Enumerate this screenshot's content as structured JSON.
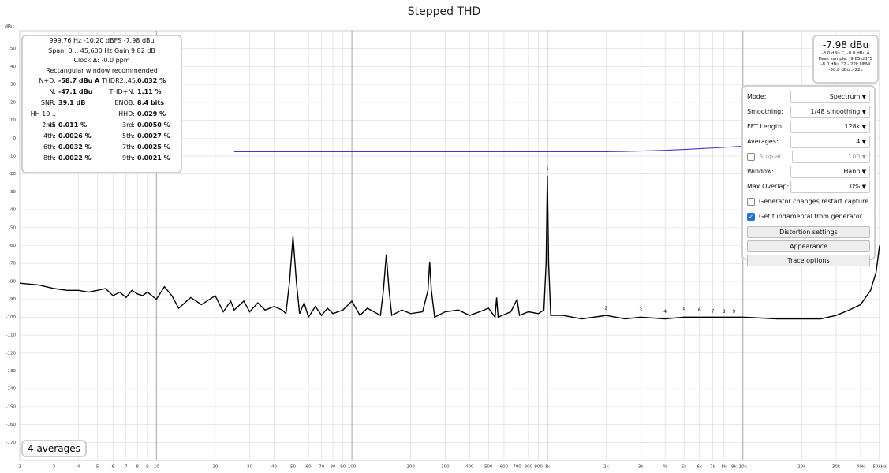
{
  "chart_data": {
    "type": "line",
    "title": "Stepped THD",
    "y_label": "dBu",
    "log_x": true,
    "grid": true,
    "xlim": [
      2,
      50000
    ],
    "ylim": [
      -180,
      60
    ],
    "xticks": [
      2,
      3,
      4,
      5,
      6,
      7,
      8,
      9,
      10,
      20,
      30,
      40,
      50,
      60,
      70,
      80,
      90,
      100,
      200,
      300,
      400,
      500,
      600,
      700,
      800,
      900,
      {
        "value": 1000,
        "label": "1k"
      },
      {
        "value": 2000,
        "label": "2k"
      },
      {
        "value": 3000,
        "label": "3k"
      },
      {
        "value": 4000,
        "label": "4k"
      },
      {
        "value": 5000,
        "label": "5k"
      },
      {
        "value": 6000,
        "label": "6k"
      },
      {
        "value": 7000,
        "label": "7k"
      },
      {
        "value": 8000,
        "label": "8k"
      },
      {
        "value": 9000,
        "label": "9k"
      },
      {
        "value": 10000,
        "label": "10k"
      },
      {
        "value": 20000,
        "label": "20k"
      },
      {
        "value": 30000,
        "label": "30k"
      },
      {
        "value": 40000,
        "label": "40k"
      },
      {
        "value": 50000,
        "label": "50kHz"
      }
    ],
    "yticks": [
      50,
      40,
      30,
      20,
      10,
      0,
      -10,
      -20,
      -30,
      -40,
      -50,
      -60,
      -70,
      -80,
      -90,
      -100,
      -110,
      -120,
      -130,
      -140,
      -150,
      -160,
      -170
    ],
    "x": [
      2,
      2.5,
      3,
      3.5,
      4,
      4.5,
      5,
      5.5,
      6,
      6.5,
      7,
      7.5,
      8,
      8.5,
      9,
      10,
      11,
      12,
      13,
      15,
      17,
      20,
      22,
      24,
      25,
      28,
      30,
      33,
      36,
      40,
      44,
      46,
      48,
      50,
      52,
      54,
      57,
      60,
      65,
      70,
      75,
      80,
      90,
      100,
      110,
      120,
      140,
      145,
      150,
      155,
      160,
      180,
      200,
      230,
      245,
      250,
      255,
      265,
      300,
      350,
      400,
      450,
      500,
      540,
      550,
      560,
      650,
      700,
      720,
      800,
      900,
      960,
      985,
      1000,
      1015,
      1040,
      1200,
      1500,
      2000,
      2500,
      3000,
      4000,
      5000,
      7000,
      10000,
      15000,
      20000,
      25000,
      30000,
      35000,
      40000,
      45000,
      48000,
      50000
    ],
    "series": [
      {
        "name": "Spectrum",
        "color": "#000000",
        "values": [
          -81,
          -82,
          -84,
          -85,
          -85,
          -86,
          -85,
          -84,
          -88,
          -86,
          -89,
          -85,
          -87,
          -88,
          -86,
          -90,
          -83,
          -88,
          -95,
          -89,
          -93,
          -88,
          -97,
          -91,
          -96,
          -91,
          -97,
          -92,
          -96,
          -94,
          -96,
          -98,
          -80,
          -55,
          -80,
          -98,
          -92,
          -100,
          -94,
          -99,
          -95,
          -98,
          -96,
          -91,
          -99,
          -95,
          -99,
          -85,
          -65,
          -85,
          -99,
          -96,
          -98,
          -97,
          -85,
          -69,
          -85,
          -100,
          -97,
          -96,
          -99,
          -97,
          -95,
          -100,
          -89,
          -100,
          -97,
          -90,
          -99,
          -97,
          -98,
          -96,
          -70,
          -21,
          -70,
          -99,
          -99,
          -101,
          -99,
          -101,
          -100,
          -101,
          -100,
          -100,
          -100,
          -101,
          -101,
          -101,
          -99,
          -96,
          -93,
          -85,
          -75,
          -60
        ]
      },
      {
        "name": "Level",
        "color": "#3a3acf",
        "values": [
          null,
          null,
          null,
          null,
          null,
          null,
          null,
          null,
          null,
          null,
          null,
          null,
          null,
          null,
          null,
          null,
          null,
          null,
          null,
          null,
          null,
          null,
          null,
          null,
          -7.6,
          -7.6,
          -7.6,
          -7.6,
          -7.6,
          -7.6,
          -7.6,
          -7.6,
          -7.6,
          -7.6,
          -7.6,
          -7.6,
          -7.6,
          -7.6,
          -7.6,
          -7.6,
          -7.6,
          -7.6,
          -7.6,
          -7.6,
          -7.6,
          -7.6,
          -7.6,
          -7.6,
          -7.6,
          -7.6,
          -7.6,
          -7.6,
          -7.6,
          -7.6,
          -7.6,
          -7.6,
          -7.6,
          -7.6,
          -7.6,
          -7.6,
          -7.6,
          -7.6,
          -7.6,
          -7.6,
          -7.6,
          -7.6,
          -7.6,
          -7.6,
          -7.6,
          -7.6,
          -7.6,
          -7.6,
          -7.6,
          -7.6,
          -7.6,
          -7.6,
          -7.6,
          -7.6,
          -7.6,
          -7.4,
          -7.2,
          -6.8,
          -6.3,
          -5.5,
          -4.5,
          null,
          null,
          null,
          null,
          null,
          null,
          null,
          null,
          null
        ]
      }
    ],
    "harmonics": [
      {
        "label": "1",
        "x": 1000,
        "y": -17
      },
      {
        "label": "2",
        "x": 2000,
        "y": -95
      },
      {
        "label": "3",
        "x": 3000,
        "y": -96
      },
      {
        "label": "4",
        "x": 4000,
        "y": -97
      },
      {
        "label": "5",
        "x": 5000,
        "y": -96
      },
      {
        "label": "6",
        "x": 6000,
        "y": -96
      },
      {
        "label": "7",
        "x": 7000,
        "y": -97
      },
      {
        "label": "8",
        "x": 8000,
        "y": -97
      },
      {
        "label": "9",
        "x": 9000,
        "y": -97
      }
    ]
  },
  "info_panel": {
    "header": [
      "999.76 Hz  -10.20 dBFS  -7.98 dBu",
      "Span: 0 .. 45,600 Hz  Gain 9.82 dB",
      "Clock Δ: -0.0 ppm",
      "Rectangular window recommended"
    ],
    "rows": [
      [
        "N+D:",
        "-58.7 dBu A",
        "THDR2..45:",
        "0.032 %"
      ],
      [
        "N:",
        "-47.1 dBu",
        "THD+N:",
        "1.11 %"
      ],
      [
        "SNR:",
        "39.1 dB",
        "ENOB:",
        "8.4 bits"
      ],
      [
        "HH 10 .. 45",
        "",
        "HHD:",
        "0.029 %"
      ],
      [
        "2nd:",
        "0.011 %",
        "3rd:",
        "0.0050 %"
      ],
      [
        "4th:",
        "0.0026 %",
        "5th:",
        "0.0027 %"
      ],
      [
        "6th:",
        "0.0032 %",
        "7th:",
        "0.0025 %"
      ],
      [
        "8th:",
        "0.0022 %",
        "9th:",
        "0.0021 %"
      ]
    ]
  },
  "level_box": {
    "main": "-7.98 dBu",
    "lines": [
      "-8.0 dBu C, -8.0 dBu A",
      "Peak sample: -9.85 dBFS",
      "-8.0 dBu 22 - 22k UNW",
      "-30.8 dBu >22k"
    ]
  },
  "controls": {
    "fields": [
      {
        "label": "Mode:",
        "value": "Spectrum"
      },
      {
        "label": "Smoothing:",
        "value": "1/48 smoothing"
      },
      {
        "label": "FFT Length:",
        "value": "128k"
      },
      {
        "label": "Averages:",
        "value": "4"
      }
    ],
    "stop_at": {
      "label": "Stop at:",
      "value": "100",
      "checked": false
    },
    "fields2": [
      {
        "label": "Window:",
        "value": "Hann"
      },
      {
        "label": "Max Overlap:",
        "value": "0%"
      }
    ],
    "checkboxes": [
      {
        "label": "Generator changes restart capture",
        "checked": false
      },
      {
        "label": "Get fundamental from generator",
        "checked": true
      }
    ],
    "buttons": [
      "Distortion settings",
      "Appearance",
      "Trace options"
    ]
  },
  "averages_badge": "4 averages"
}
